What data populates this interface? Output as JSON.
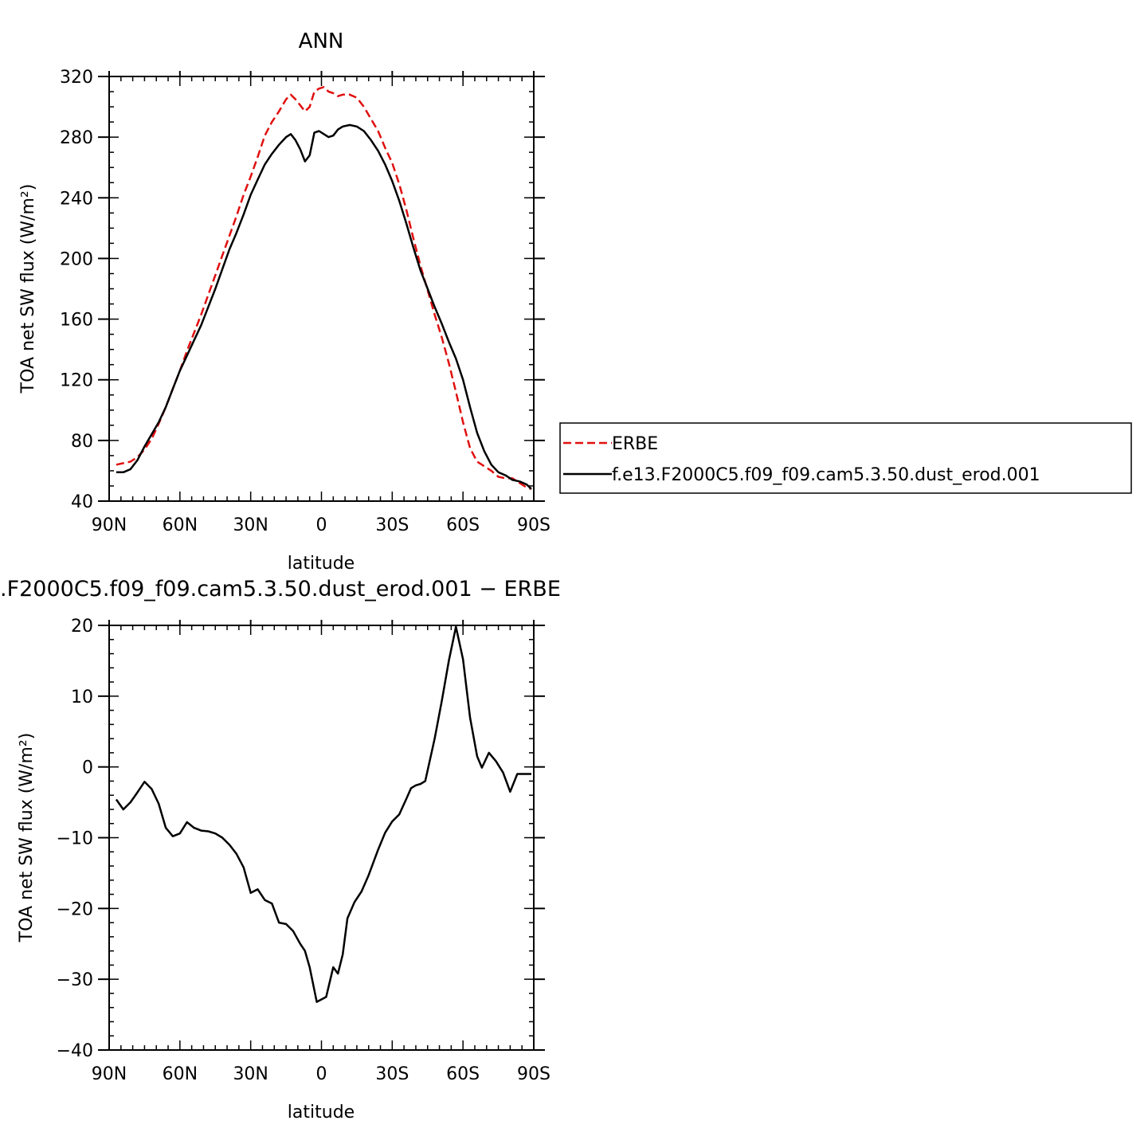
{
  "chart_data": [
    {
      "type": "line",
      "title": "ANN",
      "xlabel": "latitude",
      "ylabel": "TOA net SW flux (W/m²)",
      "xlim": [
        -90,
        90
      ],
      "ylim": [
        40,
        320
      ],
      "xticks": [
        -90,
        -60,
        -30,
        0,
        30,
        60,
        90
      ],
      "xticklabels": [
        "90N",
        "60N",
        "30N",
        "0",
        "30S",
        "60S",
        "90S"
      ],
      "yticks": [
        40,
        80,
        120,
        160,
        200,
        240,
        280,
        320
      ],
      "yticklabels": [
        "40",
        "80",
        "120",
        "160",
        "200",
        "240",
        "280",
        "320"
      ],
      "legend": "outside-right",
      "series": [
        {
          "name": "ERBE",
          "color": "#e01010",
          "style": "dashed",
          "x": [
            -87,
            -84,
            -81,
            -78,
            -75,
            -72,
            -69,
            -66,
            -63,
            -60,
            -57,
            -54,
            -51,
            -48,
            -45,
            -42,
            -39,
            -36,
            -33,
            -30,
            -27,
            -24,
            -21,
            -18,
            -15,
            -13,
            -11,
            -9,
            -7,
            -5,
            -3,
            -1,
            1,
            3,
            5,
            7,
            9,
            12,
            15,
            18,
            21,
            24,
            27,
            30,
            33,
            36,
            39,
            42,
            45,
            48,
            51,
            54,
            57,
            60,
            63,
            66,
            69,
            72,
            75,
            78,
            81,
            84,
            87,
            89
          ],
          "y": [
            64,
            65,
            66,
            69,
            74,
            81,
            91,
            102,
            114,
            126,
            139,
            151,
            163,
            176,
            189,
            202,
            215,
            228,
            242,
            254,
            267,
            281,
            290,
            297,
            305,
            308,
            305,
            301,
            297,
            300,
            310,
            312,
            313,
            310,
            309,
            307,
            308,
            308,
            306,
            300,
            292,
            284,
            273,
            263,
            249,
            232,
            213,
            195,
            179,
            163,
            148,
            131,
            112,
            92,
            75,
            66,
            63,
            60,
            56,
            55,
            55,
            52,
            49,
            48
          ],
          "linewidth": 2.5
        },
        {
          "name": "f.e13.F2000C5.f09_f09.cam5.3.50.dust_erod.001",
          "color": "#000000",
          "style": "solid",
          "x": [
            -87,
            -84,
            -81,
            -78,
            -75,
            -72,
            -69,
            -66,
            -63,
            -60,
            -57,
            -54,
            -51,
            -48,
            -45,
            -42,
            -39,
            -36,
            -33,
            -30,
            -27,
            -24,
            -21,
            -18,
            -15,
            -13,
            -11,
            -9,
            -7,
            -5,
            -3,
            -1,
            1,
            3,
            5,
            7,
            9,
            12,
            15,
            18,
            21,
            24,
            27,
            30,
            33,
            36,
            39,
            42,
            45,
            48,
            51,
            54,
            57,
            60,
            63,
            66,
            69,
            72,
            75,
            78,
            81,
            84,
            87,
            89
          ],
          "y": [
            59,
            59,
            61,
            67,
            76,
            84,
            92,
            102,
            114,
            126,
            136,
            146,
            156,
            168,
            180,
            193,
            206,
            217,
            229,
            242,
            252,
            262,
            269,
            275,
            280,
            282,
            278,
            272,
            264,
            268,
            283,
            284,
            282,
            280,
            281,
            285,
            287,
            288,
            287,
            284,
            278,
            271,
            262,
            251,
            238,
            223,
            207,
            192,
            180,
            168,
            157,
            145,
            134,
            120,
            102,
            85,
            73,
            64,
            59,
            57,
            54,
            53,
            51,
            48
          ],
          "linewidth": 2.5
        }
      ]
    },
    {
      "type": "line",
      "title": ".F2000C5.f09_f09.cam5.3.50.dust_erod.001 − ERBE",
      "xlabel": "latitude",
      "ylabel": "TOA net SW flux (W/m²)",
      "xlim": [
        -90,
        90
      ],
      "ylim": [
        -40,
        20
      ],
      "xticks": [
        -90,
        -60,
        -30,
        0,
        30,
        60,
        90
      ],
      "xticklabels": [
        "90N",
        "60N",
        "30N",
        "0",
        "30S",
        "60S",
        "90S"
      ],
      "yticks": [
        -40,
        -30,
        -20,
        -10,
        0,
        10,
        20
      ],
      "yticklabels": [
        "−40",
        "−30",
        "−20",
        "−10",
        "0",
        "10",
        "20"
      ],
      "series": [
        {
          "color": "#000000",
          "style": "solid",
          "x": [
            -87,
            -84,
            -81,
            -78,
            -75,
            -72,
            -69,
            -66,
            -63,
            -60,
            -57,
            -54,
            -51,
            -48,
            -45,
            -42,
            -39,
            -36,
            -33,
            -30,
            -27,
            -24,
            -21,
            -18,
            -15,
            -12,
            -9,
            -7,
            -5,
            -2,
            2,
            5,
            7,
            9,
            11,
            14,
            17,
            20,
            24,
            27,
            30,
            33,
            36,
            38,
            40,
            42,
            44,
            48,
            51,
            54,
            57,
            60,
            63,
            66,
            68,
            71,
            74,
            77,
            80,
            83,
            86,
            89
          ],
          "y": [
            -4.6,
            -6,
            -5,
            -3.6,
            -2.1,
            -3.1,
            -5.2,
            -8.6,
            -9.8,
            -9.4,
            -7.8,
            -8.6,
            -9,
            -9.1,
            -9.4,
            -10,
            -11,
            -12.3,
            -14.2,
            -17.8,
            -17.3,
            -18.8,
            -19.3,
            -22,
            -22.2,
            -23.2,
            -25,
            -26,
            -28.3,
            -33.2,
            -32.5,
            -28.3,
            -29.2,
            -26.5,
            -21.4,
            -19.1,
            -17.6,
            -15.3,
            -11.7,
            -9.3,
            -7.7,
            -6.7,
            -4.5,
            -3,
            -2.6,
            -2.4,
            -2,
            4,
            9.3,
            15,
            19.8,
            15.2,
            7,
            1.5,
            -0.1,
            2,
            0.8,
            -0.8,
            -3.5,
            -1,
            -1,
            -1
          ],
          "linewidth": 2.5
        }
      ]
    }
  ]
}
